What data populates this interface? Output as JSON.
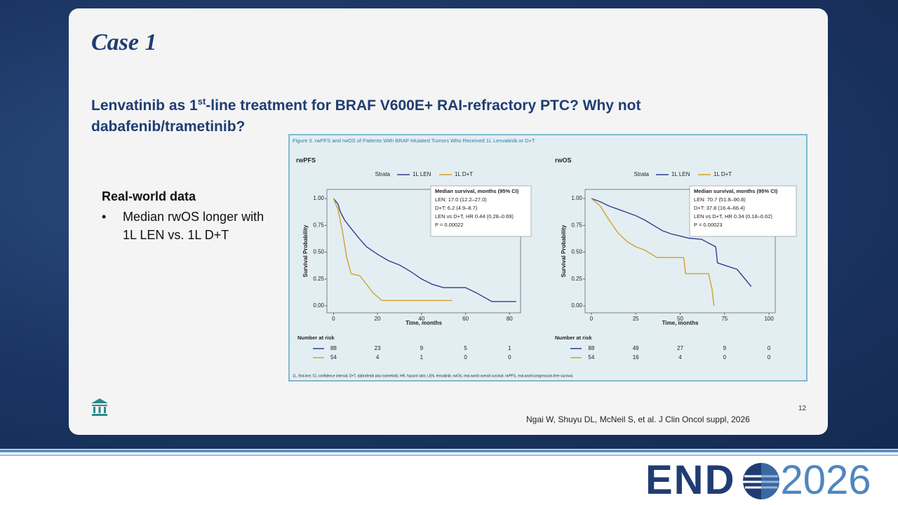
{
  "slide": {
    "title": "Case 1",
    "heading": [
      "Lenvatinib as 1",
      "st",
      "-line treatment for BRAF V600E+ RAI-refractory PTC? Why not",
      "dabafenib/trametinib?"
    ],
    "section": "Real-world data",
    "bullets": [
      "Median rwOS longer with 1L LEN vs. 1L D+T"
    ],
    "figure_caption": "Figure 3. rwPFS and rwOS of Patients With BRAF-Mutated Tumors Who Received 1L Lenvatinib or D+T",
    "footnote": "1L, first-line; CI, confidence interval; D+T, dabrafenib plus trametinib; HR, hazard ratio; LEN, lenvatinib; rwOS, real-world overall survival; rwPFS, real-world progression-free survival.",
    "citation": "Ngai W, Shuyu DL, McNeil S, et al. J Clin Oncol suppl, 2026",
    "page_number": "12",
    "logo": [
      "END",
      "2026"
    ]
  },
  "chart_data": [
    {
      "type": "line",
      "title": "rwPFS",
      "xlabel": "Time, months",
      "ylabel": "Survival Probability",
      "legend_title": "Strata",
      "xlim": [
        -3,
        85
      ],
      "xticks": [
        0,
        20,
        40,
        60,
        80
      ],
      "ylim": [
        -0.065,
        1.085
      ],
      "yticks": [
        {
          "value": 0,
          "label": "0.00"
        },
        {
          "value": 0.25,
          "label": "0.25"
        },
        {
          "value": 0.5,
          "label": "0.50"
        },
        {
          "value": 0.75,
          "label": "0.75"
        },
        {
          "value": 1,
          "label": "1.00"
        }
      ],
      "series": [
        {
          "name": "1L LEN",
          "color": "#2e3f8f",
          "x": [
            0,
            2,
            3,
            5,
            8,
            12,
            15,
            20,
            25,
            30,
            35,
            40,
            45,
            50,
            60,
            65,
            72,
            83
          ],
          "values": [
            1,
            0.95,
            0.88,
            0.8,
            0.72,
            0.62,
            0.55,
            0.48,
            0.42,
            0.38,
            0.32,
            0.25,
            0.2,
            0.17,
            0.17,
            0.12,
            0.04,
            0.04
          ]
        },
        {
          "name": "1L D+T",
          "color": "#d4a02a",
          "x": [
            0,
            2,
            4,
            6,
            8,
            12,
            18,
            22,
            54
          ],
          "values": [
            1,
            0.9,
            0.7,
            0.45,
            0.3,
            0.28,
            0.12,
            0.05,
            0.05
          ]
        }
      ],
      "annotation": {
        "title": "Median survival, months (95% CI)",
        "lines": [
          "LEN: 17.0 (12.2–27.0)",
          "D+T: 6.2 (4.9–8.7)",
          "LEN vs D+T, HR 0.44 (0.28–0.69)",
          "P = 0.00022"
        ]
      },
      "risk_table": {
        "title": "Number at risk",
        "rows": [
          [
            88,
            23,
            9,
            5,
            1
          ],
          [
            54,
            4,
            1,
            0,
            0
          ]
        ]
      }
    },
    {
      "type": "line",
      "title": "rwOS",
      "xlabel": "Time, months",
      "ylabel": "Survival Probability",
      "legend_title": "Strata",
      "xlim": [
        -3.5,
        103.5
      ],
      "xticks": [
        0,
        25,
        50,
        75,
        100
      ],
      "ylim": [
        -0.065,
        1.085
      ],
      "yticks": [
        {
          "value": 0,
          "label": "0.00"
        },
        {
          "value": 0.25,
          "label": "0.25"
        },
        {
          "value": 0.5,
          "label": "0.50"
        },
        {
          "value": 0.75,
          "label": "0.75"
        },
        {
          "value": 1,
          "label": "1.00"
        }
      ],
      "series": [
        {
          "name": "1L LEN",
          "color": "#2e3f8f",
          "x": [
            0,
            5,
            10,
            15,
            20,
            25,
            30,
            35,
            40,
            45,
            50,
            55,
            62,
            70,
            71,
            82,
            90
          ],
          "values": [
            1,
            0.97,
            0.93,
            0.9,
            0.87,
            0.84,
            0.8,
            0.75,
            0.7,
            0.67,
            0.65,
            0.63,
            0.62,
            0.55,
            0.4,
            0.34,
            0.18
          ]
        },
        {
          "name": "1L D+T",
          "color": "#d4a02a",
          "x": [
            0,
            5,
            10,
            15,
            20,
            25,
            30,
            37,
            52,
            53,
            66,
            68,
            69
          ],
          "values": [
            1,
            0.93,
            0.8,
            0.68,
            0.6,
            0.55,
            0.52,
            0.45,
            0.45,
            0.3,
            0.3,
            0.15,
            0
          ]
        }
      ],
      "annotation": {
        "title": "Median survival, months (95% CI)",
        "lines": [
          "LEN: 70.7 (51.8–90.8)",
          "D+T: 37.8 (16.4–66.4)",
          "LEN vs D+T, HR 0.34 (0.18–0.62)",
          "P = 0.00023"
        ]
      },
      "risk_table": {
        "title": "Number at risk",
        "rows": [
          [
            88,
            49,
            27,
            9,
            0
          ],
          [
            54,
            16,
            4,
            0,
            0
          ]
        ]
      }
    }
  ]
}
